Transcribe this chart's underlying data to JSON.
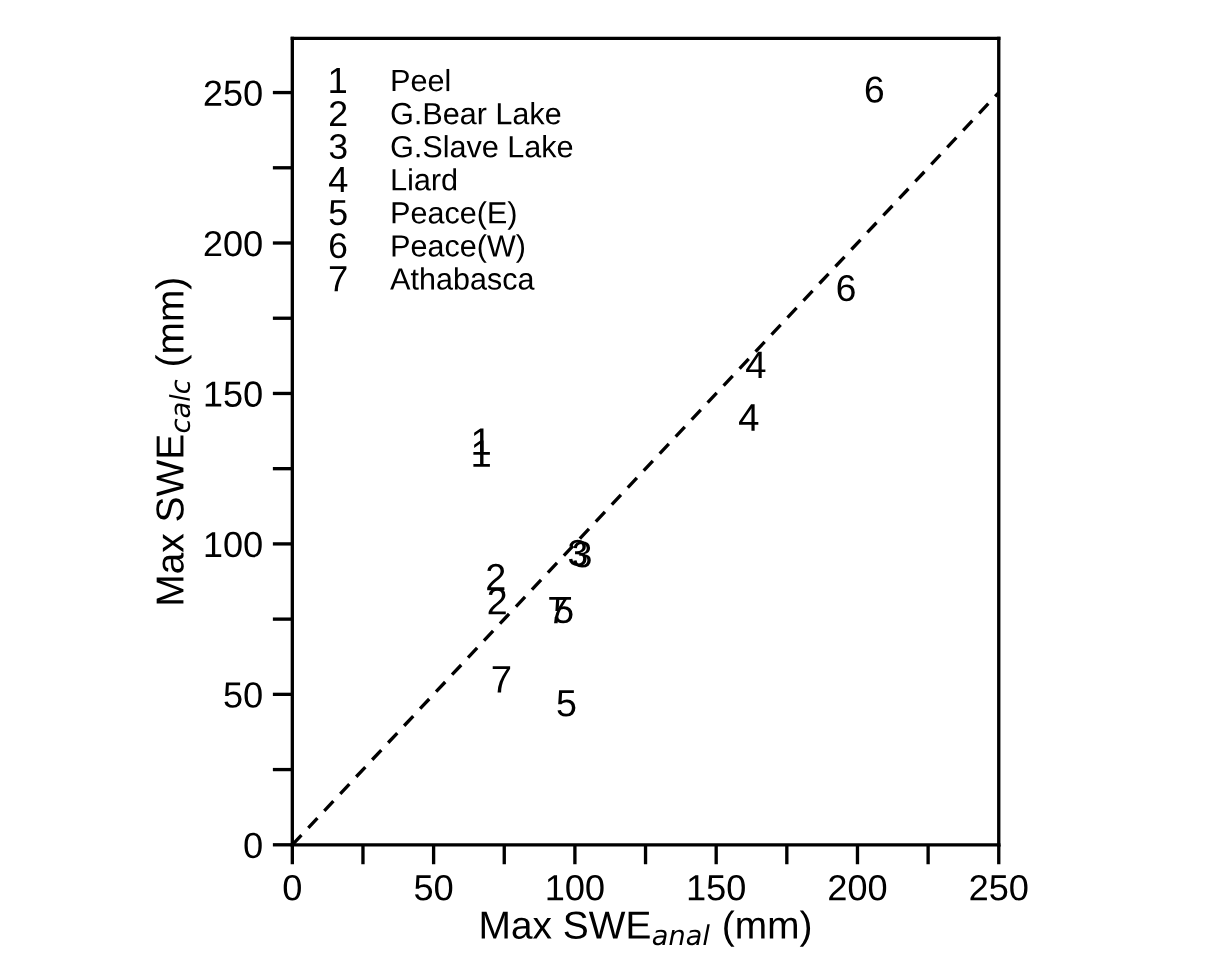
{
  "chart_data": {
    "type": "scatter",
    "xlabel": "Max SWE$_{anal}$ (mm)",
    "ylabel": "Max SWE$_{calc}$ (mm)",
    "xlim": [
      0,
      250
    ],
    "ylim": [
      0,
      268
    ],
    "xticks": [
      0,
      {
        "value": 25,
        "label": null
      },
      50,
      {
        "value": 75,
        "label": null
      },
      100,
      {
        "value": 125,
        "label": null
      },
      150,
      {
        "value": 175,
        "label": null
      },
      200,
      {
        "value": 225,
        "label": null
      },
      250
    ],
    "yticks": [
      0,
      {
        "value": 25,
        "label": null
      },
      50,
      {
        "value": 75,
        "label": null
      },
      100,
      {
        "value": 125,
        "label": null
      },
      150,
      {
        "value": 175,
        "label": null
      },
      200,
      {
        "value": 225,
        "label": null
      },
      250
    ],
    "grid": false,
    "legend": "top left",
    "series": [
      {
        "name": "Peel",
        "color": "#000000",
        "x": [
          67,
          67
        ],
        "values": [
          134,
          130
        ]
      },
      {
        "name": "G.Bear Lake",
        "color": "#000000",
        "x": [
          72,
          72.5
        ],
        "values": [
          89,
          81
        ]
      },
      {
        "name": "G.Slave Lake",
        "color": "#000000",
        "x": [
          101,
          102.5
        ],
        "values": [
          97,
          96.5
        ]
      },
      {
        "name": "Liard",
        "color": "#000000",
        "x": [
          164,
          161.5
        ],
        "values": [
          159.5,
          142
        ]
      },
      {
        "name": "Peace(E)",
        "color": "#000000",
        "x": [
          96,
          97
        ],
        "values": [
          78,
          47
        ]
      },
      {
        "name": "Peace(W)",
        "color": "#000000",
        "x": [
          196,
          206
        ],
        "values": [
          185,
          251
        ]
      },
      {
        "name": "Athabasca",
        "color": "#000000",
        "x": [
          94,
          74
        ],
        "values": [
          78,
          55
        ]
      },
      {
        "type": "line",
        "color": "#000000",
        "line_style": "dashed",
        "x": [
          0,
          250
        ],
        "values": [
          0,
          250
        ]
      }
    ]
  }
}
